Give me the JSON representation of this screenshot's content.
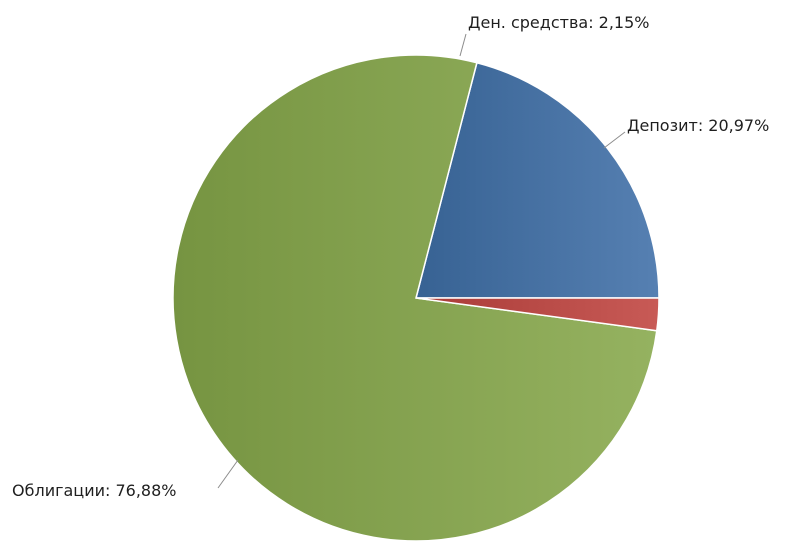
{
  "chart_data": {
    "type": "pie",
    "slices": [
      {
        "label": "Депозит: 20,97%",
        "name": "Депозит",
        "value": 20.97,
        "color": "#3f6fa7"
      },
      {
        "label": "Облигации: 76,88%",
        "name": "Облигации",
        "value": 76.88,
        "color": "#86a84a"
      },
      {
        "label": "Ден. средства: 2,15%",
        "name": "Ден. средства",
        "value": 2.15,
        "color": "#c0433f"
      }
    ],
    "start_direction": "east",
    "direction": "counterclockwise",
    "legend": "none",
    "gradient": true
  }
}
